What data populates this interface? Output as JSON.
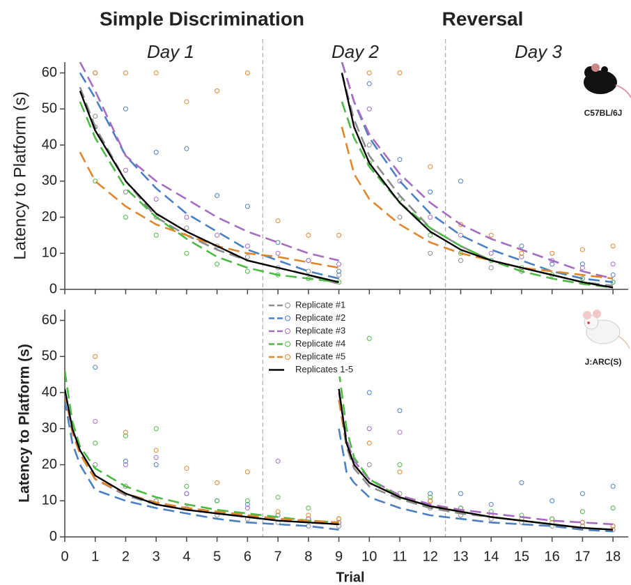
{
  "titles": {
    "left": "Simple Discrimination",
    "right": "Reversal"
  },
  "days": [
    "Day 1",
    "Day 2",
    "Day 3"
  ],
  "day_boundaries": [
    6.5,
    12.5
  ],
  "chart_data": [
    {
      "type": "line",
      "strain": "C57BL/6J",
      "y_label": "Latency to Platform (s)",
      "xlim": [
        0,
        18.5
      ],
      "ylim": [
        0,
        63
      ],
      "yticks": [
        0,
        10,
        20,
        30,
        40,
        50,
        60
      ],
      "series": [
        {
          "color": "#8c8c8c",
          "dashed": true,
          "x": [
            0.5,
            1,
            2,
            3,
            4,
            5,
            6,
            7,
            8,
            9,
            null,
            9.1,
            9.5,
            10,
            11,
            12,
            13,
            14,
            15,
            16,
            17,
            18
          ],
          "values": [
            56,
            45,
            30,
            20,
            15,
            11,
            8,
            6,
            4,
            1.5,
            null,
            60,
            47,
            37,
            26,
            17,
            12,
            8,
            6,
            4,
            2,
            1
          ],
          "points": {
            "x": [
              1,
              2,
              3,
              4,
              5,
              6,
              7,
              8,
              9,
              10,
              11,
              12,
              13,
              14,
              15,
              16,
              17,
              18
            ],
            "values": [
              48,
              27,
              20,
              17,
              12,
              9,
              6,
              5,
              4,
              40,
              20,
              10,
              8,
              6,
              5,
              4,
              3,
              2
            ]
          }
        },
        {
          "color": "#4a7fc1",
          "dashed": true,
          "x": [
            0.5,
            1,
            2,
            3,
            4,
            5,
            6,
            7,
            8,
            9,
            null,
            9.1,
            9.5,
            10,
            11,
            12,
            13,
            14,
            15,
            16,
            17,
            18
          ],
          "values": [
            60,
            53,
            37,
            28,
            21,
            16,
            11,
            8,
            5,
            3,
            null,
            63,
            52,
            42,
            30,
            21,
            15,
            11,
            8,
            5,
            3,
            2
          ],
          "points": {
            "x": [
              1,
              2,
              3,
              4,
              5,
              6,
              7,
              8,
              9,
              10,
              11,
              12,
              13,
              14,
              15,
              16,
              17,
              18
            ],
            "values": [
              60,
              50,
              38,
              39,
              26,
              23,
              13,
              8,
              5,
              57,
              36,
              27,
              30,
              8,
              12,
              7,
              7,
              4
            ]
          }
        },
        {
          "color": "#a56cc1",
          "dashed": true,
          "x": [
            0.5,
            1,
            2,
            3,
            4,
            5,
            6,
            7,
            8,
            9,
            null,
            9.1,
            9.5,
            10,
            11,
            12,
            13,
            14,
            15,
            16,
            17,
            18
          ],
          "values": [
            63,
            55,
            37,
            30,
            25,
            20,
            16,
            13,
            10,
            8,
            null,
            63,
            52,
            43,
            32,
            24,
            18,
            14,
            11,
            8,
            5,
            3
          ],
          "points": {
            "x": [
              1,
              2,
              3,
              4,
              5,
              6,
              7,
              8,
              9,
              10,
              11,
              12,
              13,
              14,
              15,
              16,
              17,
              18
            ],
            "values": [
              45,
              33,
              25,
              20,
              15,
              12,
              10,
              8,
              7,
              50,
              30,
              20,
              15,
              10,
              9,
              8,
              6,
              7
            ]
          }
        },
        {
          "color": "#4cb944",
          "dashed": true,
          "x": [
            0.5,
            1,
            2,
            3,
            4,
            5,
            6,
            7,
            8,
            9,
            null,
            9.1,
            9.5,
            10,
            11,
            12,
            13,
            14,
            15,
            16,
            17,
            18
          ],
          "values": [
            52,
            42,
            28,
            20,
            14,
            9,
            6,
            4,
            3,
            2,
            null,
            52,
            42,
            34,
            24,
            17,
            12,
            8,
            5,
            3,
            1.5,
            0.5
          ],
          "points": {
            "x": [
              1,
              2,
              3,
              4,
              5,
              6,
              7,
              8,
              9,
              10,
              11,
              12,
              13,
              14,
              15,
              16,
              17,
              18
            ],
            "values": [
              30,
              20,
              15,
              10,
              7,
              5,
              4,
              3,
              2,
              35,
              25,
              15,
              10,
              8,
              6,
              4,
              3,
              2
            ]
          }
        },
        {
          "color": "#e0862a",
          "dashed": true,
          "x": [
            0.5,
            1,
            2,
            3,
            4,
            5,
            6,
            7,
            8,
            9,
            null,
            9.1,
            9.5,
            10,
            11,
            12,
            13,
            14,
            15,
            16,
            17,
            18
          ],
          "values": [
            38,
            30,
            23,
            18,
            15,
            12,
            10,
            9,
            7.5,
            6,
            null,
            45,
            32,
            25,
            18,
            13,
            10,
            8,
            6,
            5,
            4,
            3
          ],
          "points": {
            "x": [
              1,
              2,
              3,
              4,
              5,
              6,
              7,
              8,
              9,
              10,
              11,
              12,
              13,
              14,
              15,
              16,
              17,
              18
            ],
            "values": [
              60,
              60,
              60,
              52,
              55,
              60,
              19,
              15,
              15,
              60,
              60,
              34,
              18,
              15,
              10,
              10,
              11,
              12
            ]
          }
        },
        {
          "color": "#000000",
          "dashed": false,
          "x": [
            0.5,
            1,
            2,
            3,
            4,
            5,
            6,
            7,
            8,
            9,
            null,
            9.1,
            9.5,
            10,
            11,
            12,
            13,
            14,
            15,
            16,
            17,
            18
          ],
          "values": [
            55,
            44,
            30,
            21,
            16,
            12,
            8,
            6,
            4,
            2,
            null,
            60,
            45,
            35,
            24,
            16,
            11,
            8,
            6,
            4,
            2,
            0.5
          ]
        }
      ]
    },
    {
      "type": "line",
      "strain": "J:ARC(S)",
      "y_label": "Latency to Platform (s)",
      "x_label": "Trial",
      "xlim": [
        0,
        18.5
      ],
      "ylim": [
        0,
        63
      ],
      "yticks": [
        0,
        10,
        20,
        30,
        40,
        50,
        60
      ],
      "xticks": [
        0,
        1,
        2,
        3,
        4,
        5,
        6,
        7,
        8,
        9,
        10,
        11,
        12,
        13,
        14,
        15,
        16,
        17,
        18
      ],
      "series": [
        {
          "name": "Replicate #1",
          "color": "#8c8c8c",
          "dashed": true,
          "x": [
            0,
            0.25,
            0.5,
            1,
            2,
            3,
            4,
            5,
            6,
            7,
            8,
            9,
            null,
            9,
            9.25,
            9.5,
            10,
            11,
            12,
            13,
            14,
            15,
            16,
            17,
            18
          ],
          "values": [
            40,
            29,
            23,
            16,
            11.5,
            9,
            7.5,
            6.5,
            5.5,
            4.5,
            4,
            3.5,
            null,
            38,
            25,
            19,
            14,
            10.5,
            8,
            6.5,
            5.5,
            4.5,
            3.5,
            2.5,
            2
          ],
          "points": {
            "x": [
              1,
              2,
              3,
              4,
              5,
              6,
              7,
              8,
              9,
              10,
              11,
              12,
              13,
              14,
              15,
              16,
              17,
              18
            ],
            "values": [
              20,
              14,
              10,
              8,
              6,
              5,
              4,
              3,
              3,
              20,
              12,
              8,
              6,
              5,
              4,
              3,
              3,
              2
            ]
          }
        },
        {
          "name": "Replicate #2",
          "color": "#4a7fc1",
          "dashed": true,
          "x": [
            0,
            0.25,
            0.5,
            1,
            2,
            3,
            4,
            5,
            6,
            7,
            8,
            9,
            null,
            9,
            9.25,
            9.5,
            10,
            11,
            12,
            13,
            14,
            15,
            16,
            17,
            18
          ],
          "values": [
            38,
            26,
            20,
            13,
            10,
            8,
            6.5,
            5,
            4,
            3.5,
            3,
            2,
            null,
            30,
            18,
            15,
            11,
            8,
            6,
            5,
            4,
            3.5,
            3,
            2,
            1.5
          ],
          "points": {
            "x": [
              1,
              2,
              3,
              4,
              5,
              6,
              7,
              8,
              9,
              10,
              11,
              12,
              13,
              14,
              15,
              16,
              17,
              18
            ],
            "values": [
              47,
              21,
              20,
              12,
              10,
              9,
              6,
              5,
              4,
              40,
              35,
              12,
              12,
              9,
              15,
              10,
              12,
              14
            ]
          }
        },
        {
          "name": "Replicate #3",
          "color": "#a56cc1",
          "dashed": true,
          "x": [
            0,
            0.25,
            0.5,
            1,
            2,
            3,
            4,
            5,
            6,
            7,
            8,
            9,
            null,
            9,
            9.25,
            9.5,
            10,
            11,
            12,
            13,
            14,
            15,
            16,
            17,
            18
          ],
          "values": [
            40,
            29,
            23,
            16,
            12,
            9.5,
            8,
            7,
            6,
            5,
            4.5,
            4,
            null,
            40,
            27,
            21,
            16,
            11.5,
            9,
            7.5,
            6.5,
            5.5,
            4.5,
            4,
            3.5
          ],
          "points": {
            "x": [
              1,
              2,
              3,
              4,
              5,
              6,
              7,
              8,
              9,
              10,
              11,
              12,
              13,
              14,
              15,
              16,
              17,
              18
            ],
            "values": [
              32,
              20,
              22,
              12,
              10,
              8,
              21,
              5,
              4,
              30,
              29,
              10,
              8,
              6,
              5,
              5,
              4,
              3
            ]
          }
        },
        {
          "name": "Replicate #4",
          "color": "#4cb944",
          "dashed": true,
          "x": [
            0,
            0.25,
            0.5,
            1,
            2,
            3,
            4,
            5,
            6,
            7,
            8,
            9,
            null,
            9,
            9.25,
            9.5,
            10,
            11,
            12,
            13,
            14,
            15,
            16,
            17,
            18
          ],
          "values": [
            46,
            32,
            25,
            19,
            14,
            11,
            9,
            7.5,
            6.5,
            5.5,
            4.5,
            4,
            null,
            46,
            30,
            22,
            16,
            11,
            8.5,
            7,
            5.5,
            4.5,
            3.5,
            2.5,
            2
          ],
          "points": {
            "x": [
              1,
              2,
              3,
              4,
              5,
              6,
              7,
              8,
              9,
              10,
              11,
              12,
              13,
              14,
              15,
              16,
              17,
              18
            ],
            "values": [
              26,
              28,
              30,
              14,
              10,
              10,
              11,
              8,
              5,
              55,
              20,
              11,
              8,
              7,
              6,
              5,
              7,
              8
            ]
          }
        },
        {
          "name": "Replicate #5",
          "color": "#e0862a",
          "dashed": true,
          "x": [
            0,
            0.25,
            0.5,
            1,
            2,
            3,
            4,
            5,
            6,
            7,
            8,
            9,
            null,
            9,
            9.25,
            9.5,
            10,
            11,
            12,
            13,
            14,
            15,
            16,
            17,
            18
          ],
          "values": [
            40,
            29,
            23,
            16,
            12,
            9.5,
            8,
            7,
            6,
            5,
            4.5,
            4,
            null,
            38,
            26,
            20,
            15,
            11,
            8.5,
            7,
            5.5,
            4.5,
            3.5,
            2.5,
            2
          ],
          "points": {
            "x": [
              1,
              2,
              3,
              4,
              5,
              6,
              7,
              8,
              9,
              10,
              11,
              12,
              13,
              14,
              15,
              16,
              17,
              18
            ],
            "values": [
              50,
              29,
              24,
              19,
              15,
              18,
              7,
              6,
              5,
              26,
              18,
              10,
              7,
              6,
              5,
              4,
              4,
              3
            ]
          }
        },
        {
          "name": "Replicates 1-5",
          "color": "#000000",
          "dashed": false,
          "x": [
            0,
            0.25,
            0.5,
            1,
            2,
            3,
            4,
            5,
            6,
            7,
            8,
            9,
            null,
            9,
            9.25,
            9.5,
            10,
            11,
            12,
            13,
            14,
            15,
            16,
            17,
            18
          ],
          "values": [
            41,
            30,
            24,
            17,
            12,
            9,
            7.5,
            6.5,
            5.5,
            4.5,
            4,
            3.5,
            null,
            41,
            26,
            20,
            15,
            11,
            8.5,
            7,
            5.5,
            4.5,
            3.5,
            2.5,
            2
          ]
        }
      ]
    }
  ]
}
